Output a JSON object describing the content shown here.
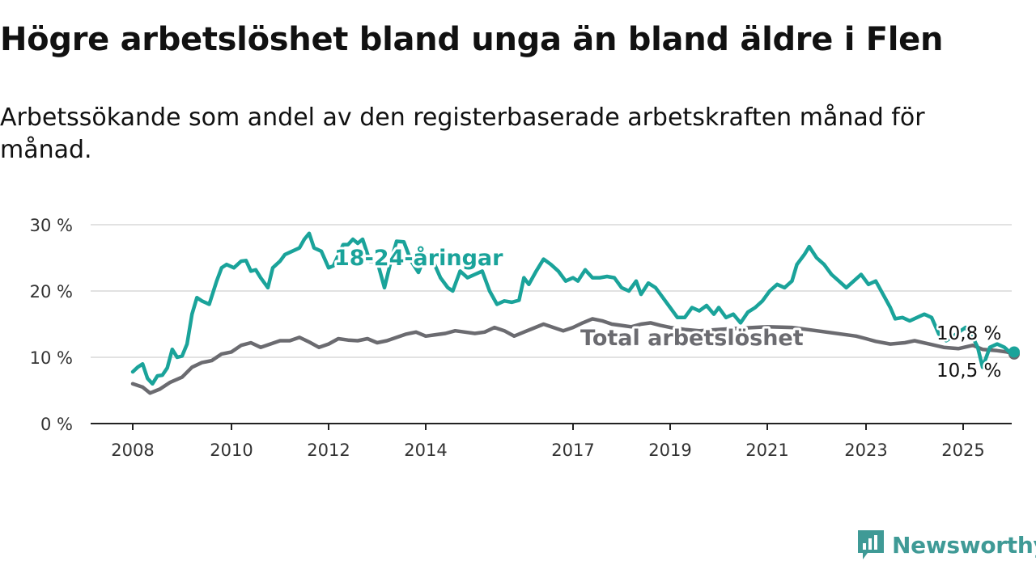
{
  "header": {
    "title": "Högre arbetslöshet bland unga än bland äldre i Flen",
    "subtitle": "Arbetssökande som andel av den registerbaserade arbetskraften månad för månad."
  },
  "brand": {
    "name": "Newsworthy",
    "icon": "bar-chart-logo-icon",
    "color": "#3f9a96"
  },
  "chart_data": {
    "type": "line",
    "title": "Högre arbetslöshet bland unga än bland äldre i Flen",
    "subtitle": "Arbetssökande som andel av den registerbaserade arbetskraften månad för månad.",
    "xlabel": "",
    "ylabel": "",
    "ylim": [
      0,
      30
    ],
    "xlim": [
      2008.0,
      2025.2
    ],
    "y_ticks": [
      0,
      10,
      20,
      30
    ],
    "y_tick_labels": [
      "0 %",
      "10 %",
      "20 %",
      "30 %"
    ],
    "x_ticks": [
      2008,
      2010,
      2012,
      2014,
      2017,
      2019,
      2021,
      2023,
      2025
    ],
    "x_tick_labels": [
      "2008",
      "2010",
      "2012",
      "2014",
      "2017",
      "2019",
      "2021",
      "2023",
      "2025"
    ],
    "grid": true,
    "legend": "none",
    "series": [
      {
        "name": "18-24-åringar",
        "color": "#1aa39a",
        "end_label": "10,8 %",
        "points": [
          [
            2008.0,
            7.8
          ],
          [
            2008.1,
            8.5
          ],
          [
            2008.2,
            9.0
          ],
          [
            2008.3,
            6.8
          ],
          [
            2008.4,
            6.0
          ],
          [
            2008.5,
            7.2
          ],
          [
            2008.6,
            7.3
          ],
          [
            2008.7,
            8.4
          ],
          [
            2008.8,
            11.2
          ],
          [
            2008.9,
            10.0
          ],
          [
            2009.0,
            10.2
          ],
          [
            2009.1,
            12.0
          ],
          [
            2009.2,
            16.5
          ],
          [
            2009.3,
            19.0
          ],
          [
            2009.4,
            18.5
          ],
          [
            2009.55,
            18.0
          ],
          [
            2009.7,
            21.5
          ],
          [
            2009.8,
            23.5
          ],
          [
            2009.9,
            24.0
          ],
          [
            2010.05,
            23.5
          ],
          [
            2010.2,
            24.5
          ],
          [
            2010.3,
            24.6
          ],
          [
            2010.4,
            23.0
          ],
          [
            2010.5,
            23.2
          ],
          [
            2010.6,
            22.0
          ],
          [
            2010.75,
            20.5
          ],
          [
            2010.85,
            23.5
          ],
          [
            2011.0,
            24.5
          ],
          [
            2011.1,
            25.5
          ],
          [
            2011.25,
            26.0
          ],
          [
            2011.4,
            26.5
          ],
          [
            2011.5,
            27.8
          ],
          [
            2011.6,
            28.7
          ],
          [
            2011.7,
            26.5
          ],
          [
            2011.85,
            26.0
          ],
          [
            2012.0,
            23.5
          ],
          [
            2012.1,
            23.8
          ],
          [
            2012.3,
            27.0
          ],
          [
            2012.4,
            27.0
          ],
          [
            2012.5,
            27.8
          ],
          [
            2012.6,
            27.2
          ],
          [
            2012.7,
            27.8
          ],
          [
            2012.85,
            24.5
          ],
          [
            2013.0,
            24.5
          ],
          [
            2013.15,
            20.5
          ],
          [
            2013.3,
            25.0
          ],
          [
            2013.4,
            27.5
          ],
          [
            2013.55,
            27.4
          ],
          [
            2013.7,
            24.5
          ],
          [
            2013.85,
            22.8
          ],
          [
            2014.0,
            25.5
          ],
          [
            2014.15,
            24.5
          ],
          [
            2014.3,
            22.0
          ],
          [
            2014.45,
            20.5
          ],
          [
            2014.55,
            20.0
          ],
          [
            2014.7,
            23.0
          ],
          [
            2014.85,
            22.0
          ],
          [
            2015.0,
            22.5
          ],
          [
            2015.15,
            23.0
          ],
          [
            2015.3,
            20.0
          ],
          [
            2015.45,
            18.0
          ],
          [
            2015.6,
            18.5
          ],
          [
            2015.75,
            18.3
          ],
          [
            2015.9,
            18.6
          ],
          [
            2016.0,
            22.0
          ],
          [
            2016.1,
            21.0
          ],
          [
            2016.25,
            23.0
          ],
          [
            2016.4,
            24.8
          ],
          [
            2016.55,
            24.0
          ],
          [
            2016.7,
            23.0
          ],
          [
            2016.85,
            21.5
          ],
          [
            2017.0,
            22.0
          ],
          [
            2017.1,
            21.5
          ],
          [
            2017.25,
            23.2
          ],
          [
            2017.4,
            22.0
          ],
          [
            2017.55,
            22.0
          ],
          [
            2017.7,
            22.2
          ],
          [
            2017.85,
            22.0
          ],
          [
            2018.0,
            20.5
          ],
          [
            2018.15,
            20.0
          ],
          [
            2018.3,
            21.5
          ],
          [
            2018.4,
            19.5
          ],
          [
            2018.55,
            21.2
          ],
          [
            2018.7,
            20.5
          ],
          [
            2018.85,
            19.0
          ],
          [
            2019.0,
            17.5
          ],
          [
            2019.15,
            16.0
          ],
          [
            2019.3,
            16.0
          ],
          [
            2019.45,
            17.5
          ],
          [
            2019.6,
            17.0
          ],
          [
            2019.75,
            17.8
          ],
          [
            2019.9,
            16.5
          ],
          [
            2020.0,
            17.5
          ],
          [
            2020.15,
            16.0
          ],
          [
            2020.3,
            16.5
          ],
          [
            2020.45,
            15.2
          ],
          [
            2020.6,
            16.8
          ],
          [
            2020.75,
            17.5
          ],
          [
            2020.9,
            18.5
          ],
          [
            2021.05,
            20.0
          ],
          [
            2021.2,
            21.0
          ],
          [
            2021.35,
            20.5
          ],
          [
            2021.5,
            21.5
          ],
          [
            2021.6,
            24.0
          ],
          [
            2021.75,
            25.5
          ],
          [
            2021.85,
            26.7
          ],
          [
            2022.0,
            25.0
          ],
          [
            2022.15,
            24.0
          ],
          [
            2022.3,
            22.5
          ],
          [
            2022.45,
            21.5
          ],
          [
            2022.6,
            20.5
          ],
          [
            2022.75,
            21.5
          ],
          [
            2022.9,
            22.5
          ],
          [
            2023.05,
            21.0
          ],
          [
            2023.2,
            21.5
          ],
          [
            2023.35,
            19.5
          ],
          [
            2023.5,
            17.5
          ],
          [
            2023.6,
            15.8
          ],
          [
            2023.75,
            16.0
          ],
          [
            2023.9,
            15.5
          ],
          [
            2024.05,
            16.0
          ],
          [
            2024.2,
            16.5
          ],
          [
            2024.35,
            16.0
          ],
          [
            2024.5,
            13.5
          ],
          [
            2024.65,
            12.5
          ],
          [
            2024.8,
            13.2
          ],
          [
            2024.95,
            14.0
          ],
          [
            2025.05,
            14.5
          ],
          [
            2025.2,
            13.0
          ],
          [
            2025.3,
            11.5
          ],
          [
            2025.4,
            8.5
          ],
          [
            2025.55,
            11.5
          ],
          [
            2025.7,
            12.0
          ],
          [
            2025.85,
            11.5
          ],
          [
            2026.0,
            10.5
          ],
          [
            2026.05,
            10.8
          ]
        ]
      },
      {
        "name": "Total arbetslöshet",
        "color": "#6b6b70",
        "end_label": "10,5 %",
        "points": [
          [
            2008.0,
            6.0
          ],
          [
            2008.2,
            5.5
          ],
          [
            2008.35,
            4.6
          ],
          [
            2008.55,
            5.2
          ],
          [
            2008.75,
            6.2
          ],
          [
            2009.0,
            7.0
          ],
          [
            2009.2,
            8.5
          ],
          [
            2009.4,
            9.2
          ],
          [
            2009.6,
            9.5
          ],
          [
            2009.8,
            10.5
          ],
          [
            2010.0,
            10.8
          ],
          [
            2010.2,
            11.8
          ],
          [
            2010.4,
            12.2
          ],
          [
            2010.6,
            11.5
          ],
          [
            2010.8,
            12.0
          ],
          [
            2011.0,
            12.5
          ],
          [
            2011.2,
            12.5
          ],
          [
            2011.4,
            13.0
          ],
          [
            2011.6,
            12.3
          ],
          [
            2011.8,
            11.5
          ],
          [
            2012.0,
            12.0
          ],
          [
            2012.2,
            12.8
          ],
          [
            2012.4,
            12.6
          ],
          [
            2012.6,
            12.5
          ],
          [
            2012.8,
            12.8
          ],
          [
            2013.0,
            12.2
          ],
          [
            2013.2,
            12.5
          ],
          [
            2013.4,
            13.0
          ],
          [
            2013.6,
            13.5
          ],
          [
            2013.8,
            13.8
          ],
          [
            2014.0,
            13.2
          ],
          [
            2014.2,
            13.4
          ],
          [
            2014.4,
            13.6
          ],
          [
            2014.6,
            14.0
          ],
          [
            2014.8,
            13.8
          ],
          [
            2015.0,
            13.6
          ],
          [
            2015.2,
            13.8
          ],
          [
            2015.4,
            14.5
          ],
          [
            2015.6,
            14.0
          ],
          [
            2015.8,
            13.2
          ],
          [
            2016.0,
            13.8
          ],
          [
            2016.2,
            14.4
          ],
          [
            2016.4,
            15.0
          ],
          [
            2016.6,
            14.5
          ],
          [
            2016.8,
            14.0
          ],
          [
            2017.0,
            14.5
          ],
          [
            2017.2,
            15.2
          ],
          [
            2017.4,
            15.8
          ],
          [
            2017.6,
            15.5
          ],
          [
            2017.8,
            15.0
          ],
          [
            2018.0,
            14.8
          ],
          [
            2018.2,
            14.6
          ],
          [
            2018.4,
            15.0
          ],
          [
            2018.6,
            15.2
          ],
          [
            2018.8,
            14.8
          ],
          [
            2019.0,
            14.5
          ],
          [
            2019.3,
            14.2
          ],
          [
            2019.6,
            14.0
          ],
          [
            2020.0,
            14.2
          ],
          [
            2020.5,
            14.4
          ],
          [
            2021.0,
            14.6
          ],
          [
            2021.5,
            14.5
          ],
          [
            2022.0,
            14.0
          ],
          [
            2022.5,
            13.5
          ],
          [
            2022.8,
            13.2
          ],
          [
            2023.0,
            12.8
          ],
          [
            2023.2,
            12.4
          ],
          [
            2023.5,
            12.0
          ],
          [
            2023.8,
            12.2
          ],
          [
            2024.0,
            12.5
          ],
          [
            2024.3,
            12.0
          ],
          [
            2024.6,
            11.5
          ],
          [
            2024.9,
            11.3
          ],
          [
            2025.2,
            11.8
          ],
          [
            2025.4,
            11.2
          ],
          [
            2025.7,
            11.0
          ],
          [
            2025.9,
            10.8
          ],
          [
            2026.05,
            10.5
          ]
        ]
      }
    ]
  }
}
